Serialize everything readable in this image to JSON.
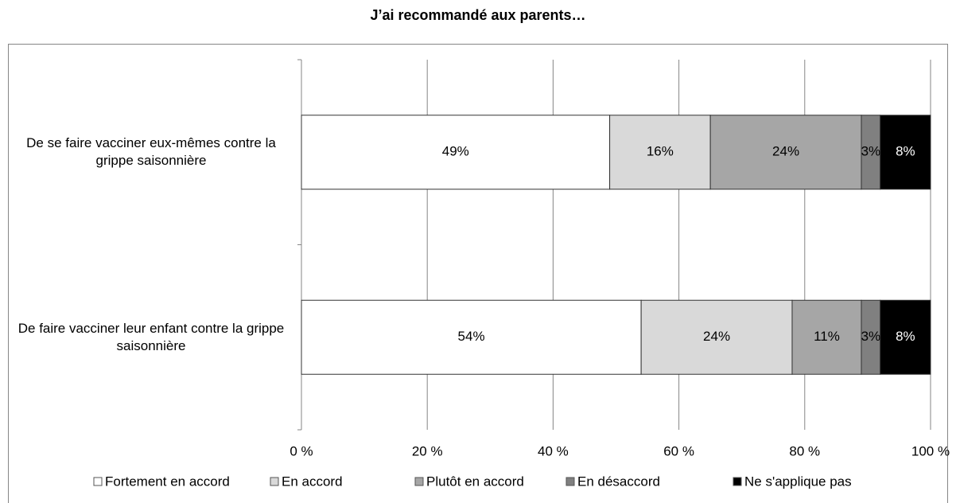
{
  "chart_data": {
    "type": "stacked_barh",
    "title": "J’ai recommandé aux parents…",
    "categories": [
      "De se faire vacciner eux-mêmes contre la grippe saisonnière",
      "De faire vacciner leur enfant contre la grippe saisonnière"
    ],
    "series": [
      {
        "name": "Fortement en accord",
        "color": "#ffffff",
        "values": [
          49,
          54
        ],
        "value_labels": [
          "49%",
          "54%"
        ]
      },
      {
        "name": "En accord",
        "color": "#d9d9d9",
        "values": [
          16,
          24
        ],
        "value_labels": [
          "16%",
          "24%"
        ]
      },
      {
        "name": "Plutôt en accord",
        "color": "#a6a6a6",
        "values": [
          24,
          11
        ],
        "value_labels": [
          "24%",
          "11%"
        ]
      },
      {
        "name": "En désaccord",
        "color": "#808080",
        "values": [
          3,
          3
        ],
        "value_labels": [
          "3%",
          "3%"
        ]
      },
      {
        "name": "Ne s'applique pas",
        "color": "#000000",
        "values": [
          8,
          8
        ],
        "value_labels": [
          "8%",
          "8%"
        ]
      }
    ],
    "xlim": [
      0,
      100
    ],
    "xticks": [
      {
        "value": 0,
        "label": "0 %"
      },
      {
        "value": 20,
        "label": "20 %"
      },
      {
        "value": 40,
        "label": "40 %"
      },
      {
        "value": 60,
        "label": "60 %"
      },
      {
        "value": 80,
        "label": "80 %"
      },
      {
        "value": 100,
        "label": "100 %"
      }
    ],
    "grid": true,
    "legend": "bottom"
  }
}
